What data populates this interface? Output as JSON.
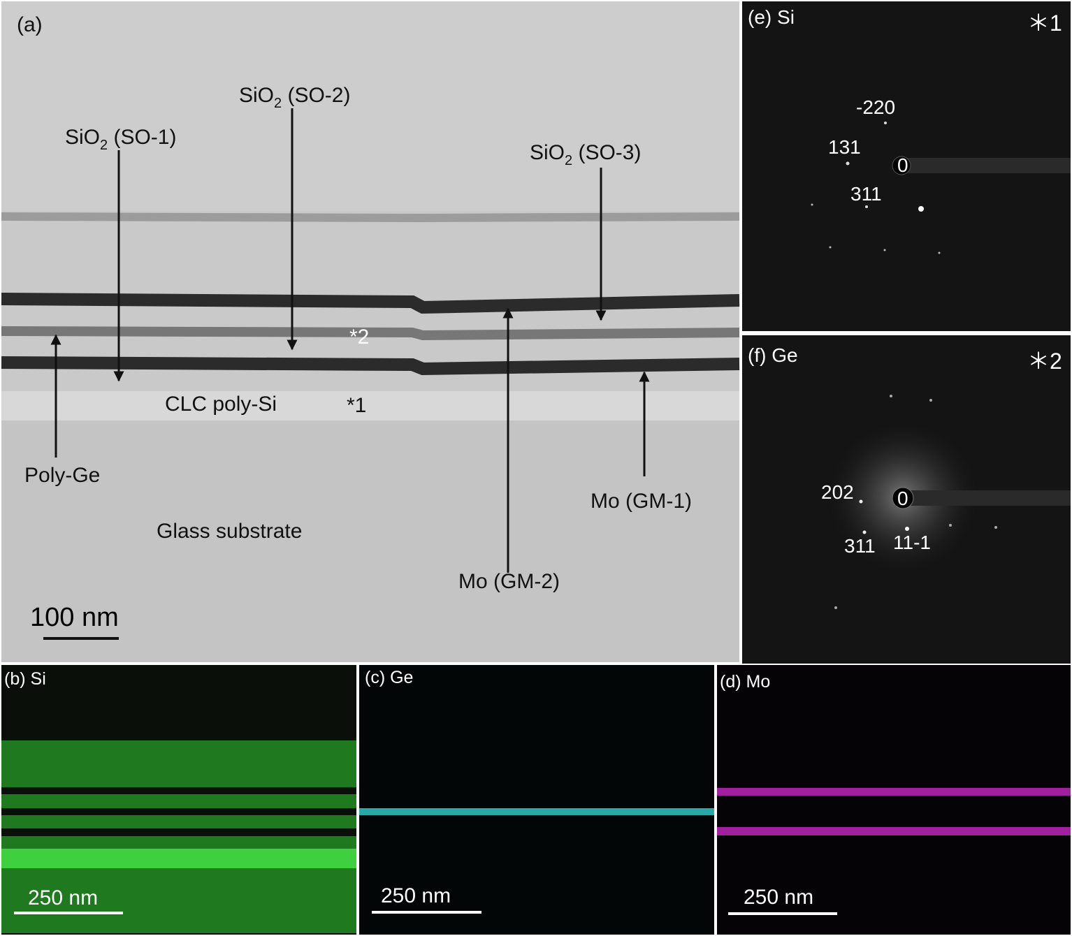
{
  "panel_a": {
    "label": "(a)",
    "sio2_labels": [
      {
        "main": "SiO",
        "sub": "2",
        "rest": " (SO-1)"
      },
      {
        "main": "SiO",
        "sub": "2",
        "rest": " (SO-2)"
      },
      {
        "main": "SiO",
        "sub": "2",
        "rest": " (SO-3)"
      }
    ],
    "poly_ge": "Poly-Ge",
    "mo_gm2": "Mo (GM-2)",
    "mo_gm1": "Mo (GM-1)",
    "clc": "CLC poly-Si",
    "glass": "Glass substrate",
    "marker_2": "*2",
    "marker_1": "*1",
    "scale_bar": "100 nm"
  },
  "panel_e": {
    "label": "(e)",
    "element": "Si",
    "marker": "＊1",
    "spots": [
      "-220",
      "131",
      "0",
      "311"
    ]
  },
  "panel_f": {
    "label": "(f)",
    "element": "Ge",
    "marker": "＊2",
    "spots": [
      "202",
      "0",
      "311",
      "11-1"
    ]
  },
  "panel_b": {
    "label": "(b)",
    "element": "Si",
    "scale_bar": "250 nm"
  },
  "panel_c": {
    "label": "(c)",
    "element": "Ge",
    "scale_bar": "250 nm"
  },
  "panel_d": {
    "label": "(d)",
    "element": "Mo",
    "scale_bar": "250 nm"
  }
}
